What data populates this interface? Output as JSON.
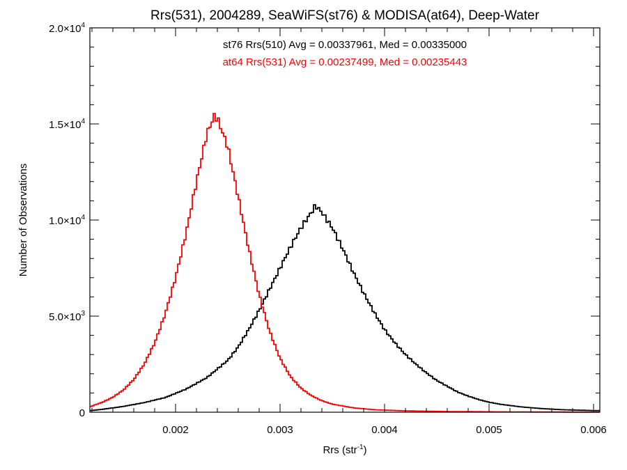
{
  "chart_data": {
    "type": "histogram",
    "title": "Rrs(531), 2004289, SeaWiFS(st76) & MODISA(at64), Deep-Water",
    "xlabel": "Rrs (str",
    "xlabel_sup": "-1",
    "xlabel_tail": ")",
    "ylabel": "Number of Observations",
    "xlim": [
      0.00118,
      0.00606
    ],
    "ylim": [
      0,
      20000
    ],
    "x_ticks": [
      {
        "value": 0.002,
        "label": "0.002"
      },
      {
        "value": 0.003,
        "label": "0.003"
      },
      {
        "value": 0.004,
        "label": "0.004"
      },
      {
        "value": 0.005,
        "label": "0.005"
      },
      {
        "value": 0.006,
        "label": "0.006"
      }
    ],
    "y_ticks": [
      {
        "value": 0,
        "mant": "0",
        "exp": ""
      },
      {
        "value": 5000,
        "mant": "5.0×10",
        "exp": "3"
      },
      {
        "value": 10000,
        "mant": "1.0×10",
        "exp": "4"
      },
      {
        "value": 15000,
        "mant": "1.5×10",
        "exp": "4"
      },
      {
        "value": 20000,
        "mant": "2.0×10",
        "exp": "4"
      }
    ],
    "x_minor_step": 0.0002,
    "y_minor_step": 1000,
    "annotations": [
      {
        "text": "st76 Rrs(510) Avg = 0.00337961, Med = 0.00335000",
        "color": "#000000"
      },
      {
        "text": "at64 Rrs(531) Avg = 0.00237499, Med = 0.00235443",
        "color": "#ff0000"
      }
    ],
    "series": [
      {
        "color": "#000000",
        "points": [
          [
            0.00118,
            80
          ],
          [
            0.0013,
            150
          ],
          [
            0.0015,
            300
          ],
          [
            0.0017,
            500
          ],
          [
            0.0019,
            760
          ],
          [
            0.0021,
            1200
          ],
          [
            0.0023,
            1800
          ],
          [
            0.0025,
            2700
          ],
          [
            0.0026,
            3400
          ],
          [
            0.0027,
            4300
          ],
          [
            0.0028,
            5300
          ],
          [
            0.0029,
            6400
          ],
          [
            0.003,
            7500
          ],
          [
            0.0031,
            8600
          ],
          [
            0.0032,
            9600
          ],
          [
            0.0033,
            10400
          ],
          [
            0.00334,
            10750
          ],
          [
            0.0034,
            10400
          ],
          [
            0.0035,
            9600
          ],
          [
            0.0036,
            8500
          ],
          [
            0.0037,
            7300
          ],
          [
            0.0038,
            6200
          ],
          [
            0.0039,
            5200
          ],
          [
            0.004,
            4300
          ],
          [
            0.0041,
            3600
          ],
          [
            0.0042,
            3000
          ],
          [
            0.0043,
            2500
          ],
          [
            0.0044,
            2050
          ],
          [
            0.0045,
            1650
          ],
          [
            0.0046,
            1350
          ],
          [
            0.0047,
            1050
          ],
          [
            0.0048,
            840
          ],
          [
            0.0049,
            660
          ],
          [
            0.005,
            520
          ],
          [
            0.0051,
            420
          ],
          [
            0.0053,
            280
          ],
          [
            0.0055,
            190
          ],
          [
            0.0057,
            130
          ],
          [
            0.0059,
            100
          ],
          [
            0.00606,
            80
          ]
        ]
      },
      {
        "color": "#ff0000",
        "points": [
          [
            0.00118,
            280
          ],
          [
            0.0013,
            520
          ],
          [
            0.0014,
            780
          ],
          [
            0.0015,
            1150
          ],
          [
            0.0016,
            1700
          ],
          [
            0.0017,
            2500
          ],
          [
            0.0018,
            3600
          ],
          [
            0.0019,
            5100
          ],
          [
            0.002,
            7000
          ],
          [
            0.0021,
            9300
          ],
          [
            0.0022,
            12000
          ],
          [
            0.0023,
            14500
          ],
          [
            0.00237,
            15400
          ],
          [
            0.0024,
            15300
          ],
          [
            0.0025,
            13800
          ],
          [
            0.0026,
            11200
          ],
          [
            0.0027,
            8500
          ],
          [
            0.0028,
            6100
          ],
          [
            0.0029,
            4200
          ],
          [
            0.003,
            2800
          ],
          [
            0.0031,
            1850
          ],
          [
            0.0032,
            1250
          ],
          [
            0.0033,
            860
          ],
          [
            0.0034,
            600
          ],
          [
            0.0035,
            420
          ],
          [
            0.0037,
            230
          ],
          [
            0.0039,
            130
          ],
          [
            0.0042,
            70
          ],
          [
            0.0046,
            35
          ],
          [
            0.0052,
            15
          ],
          [
            0.00606,
            5
          ]
        ]
      }
    ]
  }
}
